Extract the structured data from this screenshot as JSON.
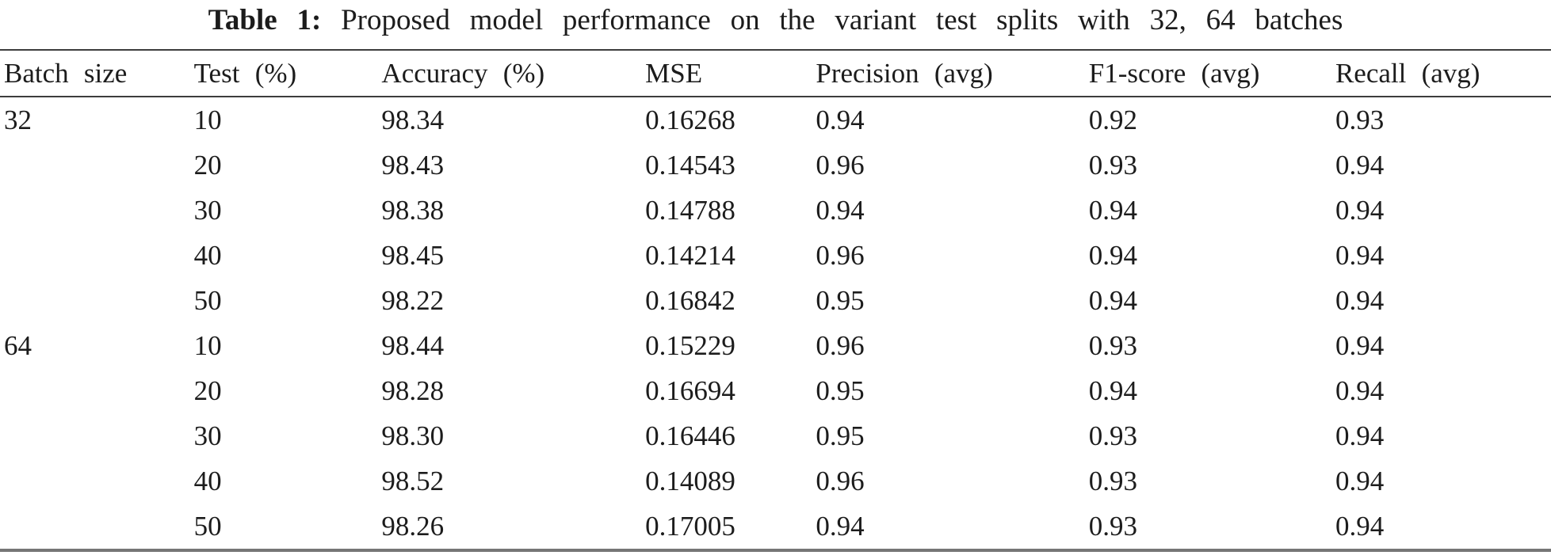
{
  "document": {
    "caption": {
      "label": "Table 1:",
      "text": "Proposed model performance on the variant test splits with 32, 64 batches"
    }
  },
  "table": {
    "columns": [
      "Batch size",
      "Test (%)",
      "Accuracy (%)",
      "MSE",
      "Precision (avg)",
      "F1-score (avg)",
      "Recall (avg)"
    ],
    "rows": [
      [
        "32",
        "10",
        "98.34",
        "0.16268",
        "0.94",
        "0.92",
        "0.93"
      ],
      [
        "",
        "20",
        "98.43",
        "0.14543",
        "0.96",
        "0.93",
        "0.94"
      ],
      [
        "",
        "30",
        "98.38",
        "0.14788",
        "0.94",
        "0.94",
        "0.94"
      ],
      [
        "",
        "40",
        "98.45",
        "0.14214",
        "0.96",
        "0.94",
        "0.94"
      ],
      [
        "",
        "50",
        "98.22",
        "0.16842",
        "0.95",
        "0.94",
        "0.94"
      ],
      [
        "64",
        "10",
        "98.44",
        "0.15229",
        "0.96",
        "0.93",
        "0.94"
      ],
      [
        "",
        "20",
        "98.28",
        "0.16694",
        "0.95",
        "0.94",
        "0.94"
      ],
      [
        "",
        "30",
        "98.30",
        "0.16446",
        "0.95",
        "0.93",
        "0.94"
      ],
      [
        "",
        "40",
        "98.52",
        "0.14089",
        "0.96",
        "0.93",
        "0.94"
      ],
      [
        "",
        "50",
        "98.26",
        "0.17005",
        "0.94",
        "0.93",
        "0.94"
      ]
    ]
  }
}
